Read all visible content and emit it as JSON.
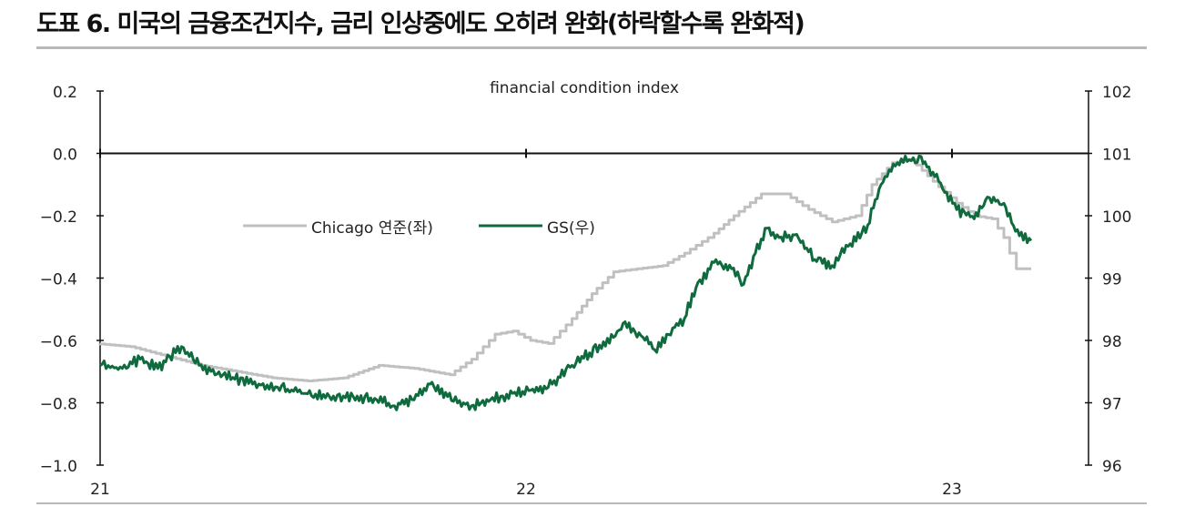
{
  "title": "도표 6. 미국의 금융조건지수, 금리 인상중에도 오히려 완화(하락할수록 완화적)",
  "chart_data": {
    "type": "line",
    "title": "financial condition index",
    "x_ticks": [
      "21",
      "22",
      "23"
    ],
    "x_range": [
      "2021-01",
      "2023-03"
    ],
    "y_left": {
      "ticks": [
        "0.2",
        "0.0",
        "−0.2",
        "−0.4",
        "−0.6",
        "−0.8",
        "−1.0"
      ],
      "ylim": [
        -1.0,
        0.2
      ]
    },
    "y_right": {
      "ticks": [
        "102",
        "101",
        "100",
        "99",
        "98",
        "97",
        "96"
      ],
      "ylim": [
        96,
        102
      ]
    },
    "legend_placement": "upper-left-center",
    "series": [
      {
        "name": "Chicago 연준(좌)",
        "axis": "left",
        "color": "#c0c0c0",
        "points": [
          [
            "2021-01-01",
            -0.61
          ],
          [
            "2021-02-01",
            -0.62
          ],
          [
            "2021-03-01",
            -0.65
          ],
          [
            "2021-04-01",
            -0.68
          ],
          [
            "2021-05-01",
            -0.7
          ],
          [
            "2021-06-01",
            -0.72
          ],
          [
            "2021-07-01",
            -0.73
          ],
          [
            "2021-08-01",
            -0.72
          ],
          [
            "2021-09-01",
            -0.68
          ],
          [
            "2021-10-01",
            -0.69
          ],
          [
            "2021-11-01",
            -0.71
          ],
          [
            "2021-11-20",
            -0.66
          ],
          [
            "2021-12-10",
            -0.58
          ],
          [
            "2021-12-25",
            -0.57
          ],
          [
            "2022-01-10",
            -0.6
          ],
          [
            "2022-01-25",
            -0.61
          ],
          [
            "2022-02-10",
            -0.55
          ],
          [
            "2022-03-01",
            -0.45
          ],
          [
            "2022-03-20",
            -0.38
          ],
          [
            "2022-04-10",
            -0.37
          ],
          [
            "2022-05-01",
            -0.36
          ],
          [
            "2022-05-20",
            -0.32
          ],
          [
            "2022-06-10",
            -0.27
          ],
          [
            "2022-07-01",
            -0.2
          ],
          [
            "2022-07-25",
            -0.13
          ],
          [
            "2022-08-15",
            -0.13
          ],
          [
            "2022-09-05",
            -0.18
          ],
          [
            "2022-09-25",
            -0.22
          ],
          [
            "2022-10-15",
            -0.2
          ],
          [
            "2022-10-28",
            -0.1
          ],
          [
            "2022-11-15",
            -0.03
          ],
          [
            "2022-12-01",
            -0.02
          ],
          [
            "2022-12-20",
            -0.09
          ],
          [
            "2023-01-10",
            -0.16
          ],
          [
            "2023-01-25",
            -0.2
          ],
          [
            "2023-02-10",
            -0.21
          ],
          [
            "2023-02-20",
            -0.27
          ],
          [
            "2023-03-01",
            -0.37
          ],
          [
            "2023-03-08",
            -0.37
          ]
        ]
      },
      {
        "name": "GS(우)",
        "axis": "right",
        "color": "#0f6b3d",
        "points": [
          [
            "2021-01-01",
            97.6
          ],
          [
            "2021-01-20",
            97.55
          ],
          [
            "2021-02-05",
            97.7
          ],
          [
            "2021-02-20",
            97.55
          ],
          [
            "2021-03-10",
            97.9
          ],
          [
            "2021-03-25",
            97.6
          ],
          [
            "2021-04-15",
            97.45
          ],
          [
            "2021-05-10",
            97.3
          ],
          [
            "2021-06-01",
            97.25
          ],
          [
            "2021-06-25",
            97.15
          ],
          [
            "2021-07-15",
            97.1
          ],
          [
            "2021-08-05",
            97.1
          ],
          [
            "2021-08-25",
            97.05
          ],
          [
            "2021-09-10",
            96.95
          ],
          [
            "2021-09-25",
            97.05
          ],
          [
            "2021-10-10",
            97.3
          ],
          [
            "2021-10-25",
            97.1
          ],
          [
            "2021-11-15",
            96.95
          ],
          [
            "2021-12-01",
            97.05
          ],
          [
            "2021-12-20",
            97.15
          ],
          [
            "2022-01-05",
            97.2
          ],
          [
            "2022-01-20",
            97.25
          ],
          [
            "2022-02-10",
            97.6
          ],
          [
            "2022-02-25",
            97.8
          ],
          [
            "2022-03-15",
            98.05
          ],
          [
            "2022-03-25",
            98.3
          ],
          [
            "2022-04-10",
            98.05
          ],
          [
            "2022-04-20",
            97.85
          ],
          [
            "2022-05-05",
            98.2
          ],
          [
            "2022-05-15",
            98.35
          ],
          [
            "2022-05-25",
            98.85
          ],
          [
            "2022-06-10",
            99.25
          ],
          [
            "2022-06-25",
            99.15
          ],
          [
            "2022-07-05",
            98.9
          ],
          [
            "2022-07-15",
            99.4
          ],
          [
            "2022-07-25",
            99.8
          ],
          [
            "2022-08-05",
            99.65
          ],
          [
            "2022-08-20",
            99.7
          ],
          [
            "2022-09-05",
            99.3
          ],
          [
            "2022-09-20",
            99.2
          ],
          [
            "2022-10-05",
            99.55
          ],
          [
            "2022-10-20",
            99.85
          ],
          [
            "2022-11-01",
            100.5
          ],
          [
            "2022-11-15",
            100.85
          ],
          [
            "2022-12-05",
            100.95
          ],
          [
            "2022-12-20",
            100.55
          ],
          [
            "2023-01-05",
            100.1
          ],
          [
            "2023-01-20",
            99.95
          ],
          [
            "2023-02-01",
            100.3
          ],
          [
            "2023-02-15",
            100.2
          ],
          [
            "2023-02-25",
            99.75
          ],
          [
            "2023-03-08",
            99.6
          ]
        ]
      }
    ]
  }
}
